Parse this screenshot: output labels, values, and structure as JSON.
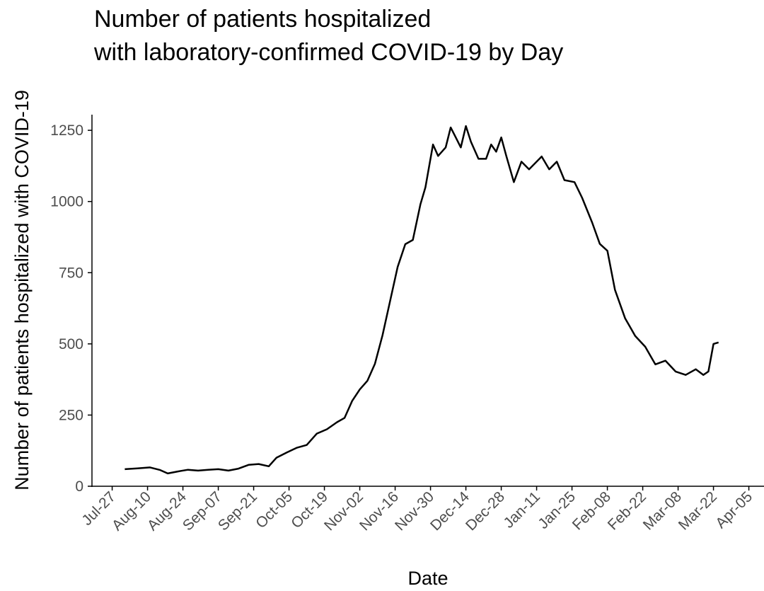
{
  "chart_data": {
    "type": "line",
    "title": [
      "Number of patients hospitalized",
      "with laboratory-confirmed COVID-19 by Day"
    ],
    "x_label": "Date",
    "y_label": "Number of patients hospitalized with COVID-19",
    "x": [
      "Aug-01",
      "Aug-06",
      "Aug-11",
      "Aug-15",
      "Aug-18",
      "Aug-22",
      "Aug-26",
      "Aug-30",
      "Sep-03",
      "Sep-07",
      "Sep-11",
      "Sep-15",
      "Sep-19",
      "Sep-23",
      "Sep-27",
      "Sep-30",
      "Oct-04",
      "Oct-08",
      "Oct-12",
      "Oct-16",
      "Oct-20",
      "Oct-24",
      "Oct-27",
      "Oct-30",
      "Nov-02",
      "Nov-05",
      "Nov-08",
      "Nov-11",
      "Nov-14",
      "Nov-17",
      "Nov-20",
      "Nov-23",
      "Nov-26",
      "Nov-28",
      "Dec-01",
      "Dec-03",
      "Dec-06",
      "Dec-08",
      "Dec-10",
      "Dec-12",
      "Dec-14",
      "Dec-16",
      "Dec-19",
      "Dec-22",
      "Dec-24",
      "Dec-26",
      "Dec-28",
      "Dec-30",
      "Jan-02",
      "Jan-05",
      "Jan-08",
      "Jan-11",
      "Jan-13",
      "Jan-16",
      "Jan-19",
      "Jan-22",
      "Jan-26",
      "Jan-29",
      "Feb-02",
      "Feb-05",
      "Feb-08",
      "Feb-11",
      "Feb-15",
      "Feb-19",
      "Feb-23",
      "Feb-27",
      "Mar-03",
      "Mar-07",
      "Mar-11",
      "Mar-15",
      "Mar-18",
      "Mar-20",
      "Mar-22",
      "Mar-24"
    ],
    "series": [
      {
        "name": "Hospitalized",
        "color": "#000000",
        "values": [
          60,
          63,
          66,
          57,
          45,
          52,
          58,
          55,
          58,
          60,
          55,
          62,
          75,
          78,
          70,
          100,
          118,
          135,
          145,
          185,
          200,
          225,
          240,
          300,
          340,
          370,
          430,
          530,
          650,
          770,
          850,
          865,
          990,
          1050,
          1200,
          1160,
          1190,
          1260,
          1225,
          1190,
          1265,
          1210,
          1150,
          1150,
          1200,
          1175,
          1225,
          1160,
          1068,
          1140,
          1113,
          1140,
          1158,
          1113,
          1140,
          1075,
          1068,
          1013,
          926,
          851,
          827,
          690,
          590,
          528,
          490,
          428,
          441,
          403,
          391,
          411,
          391,
          403,
          500,
          505
        ]
      }
    ],
    "xlim": [
      "Jul-19",
      "Apr-11"
    ],
    "xticks": [
      "Jul-27",
      "Aug-10",
      "Aug-24",
      "Sep-07",
      "Sep-21",
      "Oct-05",
      "Oct-19",
      "Nov-02",
      "Nov-16",
      "Nov-30",
      "Dec-14",
      "Dec-28",
      "Jan-11",
      "Jan-25",
      "Feb-08",
      "Feb-22",
      "Mar-08",
      "Mar-22",
      "Apr-05"
    ],
    "ylim": [
      0,
      1305
    ],
    "yticks": [
      0,
      250,
      500,
      750,
      1000,
      1250
    ],
    "grid": false
  }
}
